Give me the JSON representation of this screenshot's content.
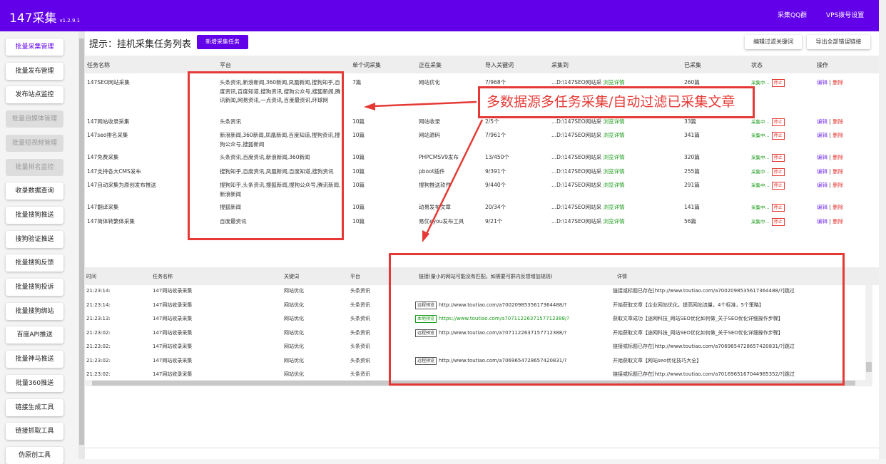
{
  "header": {
    "app": "147采集",
    "version": "v1.2.9.1",
    "qq_group": "采集QQ群",
    "vps": "VPS拨号设置"
  },
  "sidebar": {
    "items": [
      {
        "label": "批量采集管理",
        "state": "active"
      },
      {
        "label": "批量发布管理"
      },
      {
        "label": "发布站点监控"
      },
      {
        "label": "批量自媒体管理",
        "state": "disabled"
      },
      {
        "label": "批量短视频管理",
        "state": "disabled"
      },
      {
        "label": "批量排名监控",
        "state": "disabled"
      },
      {
        "label": "收录数据查询"
      },
      {
        "label": "批量搜狗推送"
      },
      {
        "label": "搜狗验证推送"
      },
      {
        "label": "批量搜狗反馈"
      },
      {
        "label": "批量搜狗投诉"
      },
      {
        "label": "批量搜狗绑站"
      },
      {
        "label": "百度API推送"
      },
      {
        "label": "批量神马推送"
      },
      {
        "label": "批量360推送"
      },
      {
        "label": "链接生成工具"
      },
      {
        "label": "链接抓取工具"
      },
      {
        "label": "伪原创工具"
      }
    ]
  },
  "main": {
    "title": "提示：挂机采集任务列表",
    "new_task": "新增采集任务",
    "edit_filter": "编辑过滤关键词",
    "export_errors": "导出全部错误链接",
    "columns": [
      "任务名称",
      "平台",
      "单个词采集",
      "正在采集",
      "导入关键词",
      "采集到",
      "已采集",
      "状态",
      "操作"
    ],
    "rows": [
      {
        "name": "147SEO网站采集",
        "platform": "头条资讯,新浪新闻,360新闻,凤凰新闻,搜狗知乎,百度资讯,百度知道,搜狗资讯,搜狗公众号,搜狐新闻,腾讯新闻,网易资讯,一点资讯,百度最资讯,环球网",
        "per_word": "7篇",
        "current": "网站优化",
        "keywords": "7/968个",
        "dest": "...D:\\147SEO网站采",
        "browse": "浏览详情",
        "collected": "260篇",
        "status": "采集中...",
        "stop": "停止",
        "edit": "编辑",
        "del": "删除"
      },
      {
        "name": "147网站收录采集",
        "platform": "头条资讯",
        "per_word": "10篇",
        "current": "网站收录",
        "keywords": "2/5个",
        "dest": "...D:\\147SEO网站采",
        "browse": "浏览详情",
        "collected": "33篇",
        "status": "采集中...",
        "stop": "停止",
        "edit": "编辑",
        "del": "删除"
      },
      {
        "name": "147seo排名采集",
        "platform": "新浪新闻,360新闻,凤凰新闻,百度知道,搜狗资讯,搜狗公众号,搜狐新闻",
        "per_word": "10篇",
        "current": "网站源码",
        "keywords": "7/961个",
        "dest": "...D:\\147SEO网站采",
        "browse": "浏览详情",
        "collected": "341篇",
        "status": "采集中...",
        "stop": "停止",
        "edit": "编辑",
        "del": "删除"
      },
      {
        "name": "147免费采集",
        "platform": "头条资讯,百度资讯,新浪新闻,360新闻",
        "per_word": "10篇",
        "current": "PHPCMSV9发布",
        "keywords": "13/450个",
        "dest": "...D:\\147SEO网站采",
        "browse": "浏览详情",
        "collected": "320篇",
        "status": "采集中...",
        "stop": "停止",
        "edit": "编辑",
        "del": "删除"
      },
      {
        "name": "147支持各大CMS发布",
        "platform": "搜狗知乎,百度资讯,凤凰新闻,百度知道,搜狗资讯",
        "per_word": "10篇",
        "current": "pboot插件",
        "keywords": "9/391个",
        "dest": "...D:\\147SEO网站采",
        "browse": "浏览详情",
        "collected": "255篇",
        "status": "采集中...",
        "stop": "停止",
        "edit": "编辑",
        "del": "删除"
      },
      {
        "name": "147自动采集为原创发布推送",
        "platform": "搜狗知乎,头条资讯,搜狐新闻,搜狗公众号,腾讯新闻,新浪新闻",
        "per_word": "10篇",
        "current": "搜狗推送软件",
        "keywords": "9/440个",
        "dest": "...D:\\147SEO网站采",
        "browse": "浏览详情",
        "collected": "291篇",
        "status": "采集中...",
        "stop": "停止",
        "edit": "编辑",
        "del": "删除"
      },
      {
        "name": "147翻译采集",
        "platform": "搜狐新闻",
        "per_word": "10篇",
        "current": "动易发布文章",
        "keywords": "20/34个",
        "dest": "...D:\\147SEO网站采",
        "browse": "浏览详情",
        "collected": "141篇",
        "status": "采集中...",
        "stop": "停止",
        "edit": "编辑",
        "del": "删除"
      },
      {
        "name": "147简体转繁体采集",
        "platform": "百度最资讯",
        "per_word": "10篇",
        "current": "易优eyou发布工具",
        "keywords": "9/21个",
        "dest": "...D:\\147SEO网站采",
        "browse": "浏览详情",
        "collected": "56篇",
        "status": "采集中...",
        "stop": "停止",
        "edit": "编辑",
        "del": "删除"
      }
    ]
  },
  "log": {
    "columns": [
      "时间",
      "任务名称",
      "关键词",
      "平台",
      "链接(量小的网站可能没有匹配，如需要可群内反馈增加规则)",
      "详情"
    ],
    "rows": [
      {
        "time": "21:23:14:",
        "task": "147网站收录采集",
        "kw": "网站优化",
        "platform": "头条资讯",
        "tag": "",
        "link": "",
        "detail": "链接或标题已存在[http://www.toutiao.com/a7002098535617364488/?]跳过"
      },
      {
        "time": "21:23:14:",
        "task": "147网站收录采集",
        "kw": "网站优化",
        "platform": "头条资讯",
        "tag": "远程预览",
        "link": "http://www.toutiao.com/a7002098535617364488/?",
        "detail": "开始获取文章【企业网站优化，提高网站流量，4个标准，5个策略】"
      },
      {
        "time": "21:23:13:",
        "task": "147网站收录采集",
        "kw": "网站优化",
        "platform": "头条资讯",
        "tag": "本地预览",
        "link": "https://www.toutiao.com/a7071122637157712388/?",
        "detail": "获取文章成功【途网科技_网站SEO优化如何做_关于SEO优化详细操作步骤】",
        "ok": true
      },
      {
        "time": "21:23:02:",
        "task": "147网站收录采集",
        "kw": "网站优化",
        "platform": "头条资讯",
        "tag": "远程预览",
        "link": "http://www.toutiao.com/a7071122637157712388/?",
        "detail": "开始获取文章【途网科技_网站SEO优化如何做_关于SEO优化详细操作步骤】"
      },
      {
        "time": "21:23:02:",
        "task": "147网站收录采集",
        "kw": "网站优化",
        "platform": "头条资讯",
        "tag": "",
        "link": "",
        "detail": "链接或标题已存在[http://www.toutiao.com/a7069654728657420831/?]跳过"
      },
      {
        "time": "21:23:02:",
        "task": "147网站收录采集",
        "kw": "网站优化",
        "platform": "头条资讯",
        "tag": "远程预览",
        "link": "http://www.toutiao.com/a7069654728657420831/?",
        "detail": "开始获取文章【网站seo优化技巧大全】"
      },
      {
        "time": "21:23:02:",
        "task": "147网站收录采集",
        "kw": "网站优化",
        "platform": "头条资讯",
        "tag": "",
        "link": "",
        "detail": "链接或标题已存在[http://www.toutiao.com/a7016965167044985352/?]跳过"
      }
    ]
  },
  "annotation": {
    "callout": "多数据源多任务采集/自动过滤已采集文章",
    "color": "#e53935"
  },
  "colors": {
    "brand": "#6200ea",
    "success": "#1a9a1a",
    "danger": "#e53935"
  }
}
